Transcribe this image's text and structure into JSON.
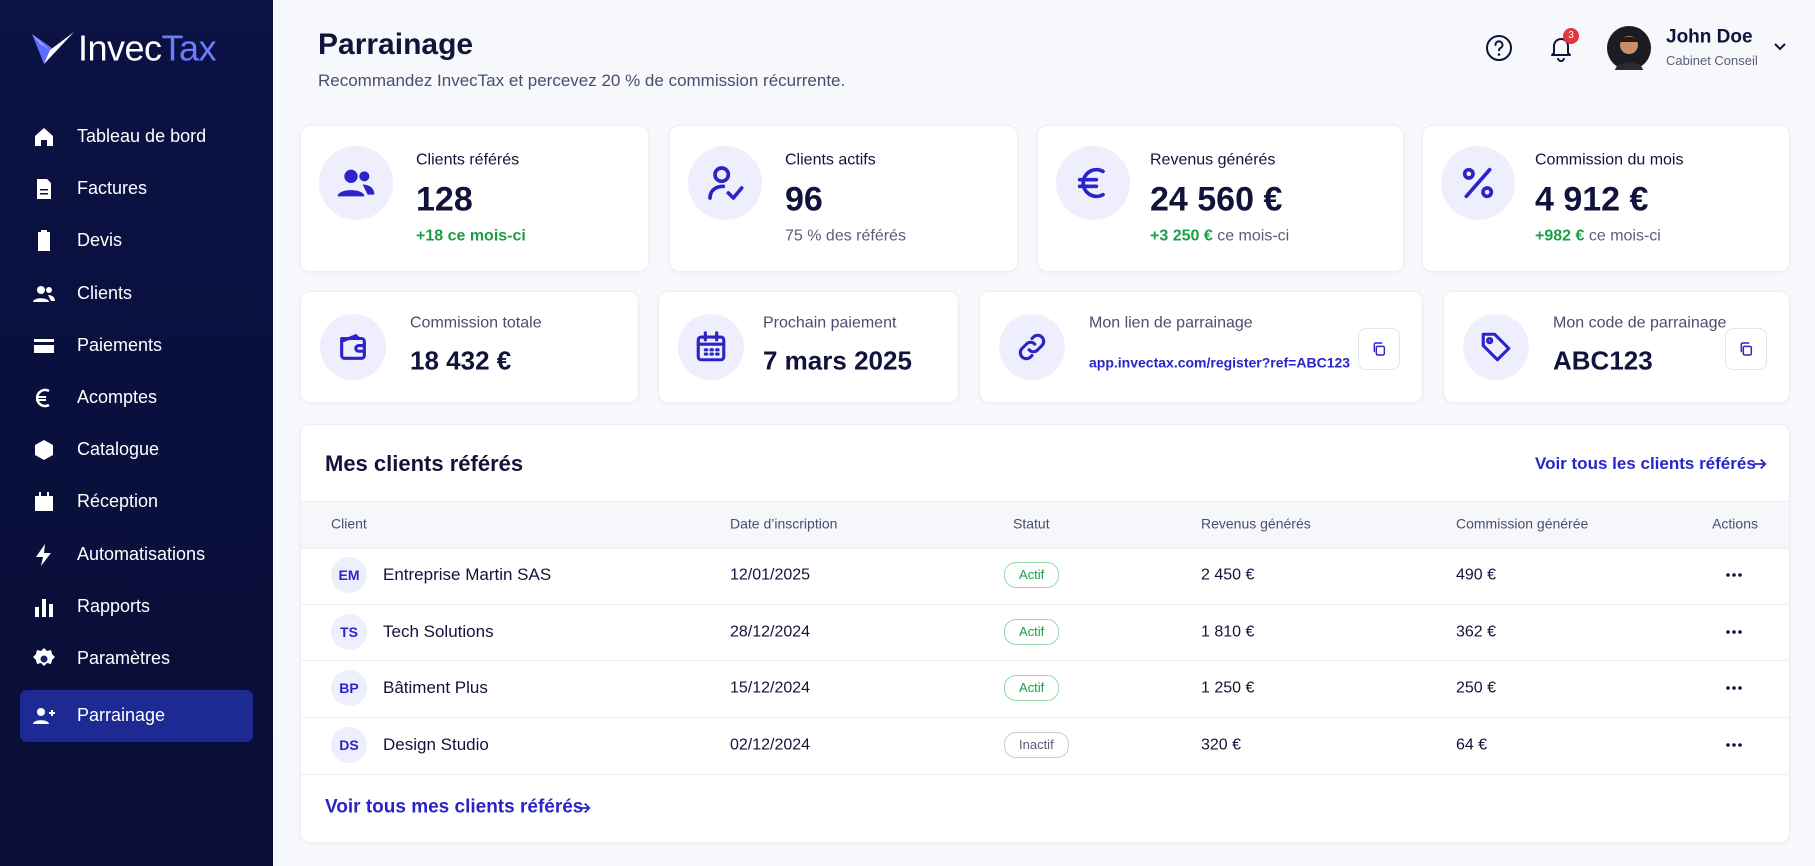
{
  "sidebar": {
    "logo": {
      "left": "Invec",
      "right": "Tax"
    },
    "nav": [
      {
        "label": "Tableau de bord"
      },
      {
        "label": "Factures"
      },
      {
        "label": "Devis"
      },
      {
        "label": "Clients"
      },
      {
        "label": "Paiements"
      },
      {
        "label": "Acomptes"
      },
      {
        "label": "Catalogue"
      },
      {
        "label": "Réception"
      },
      {
        "label": "Automatisations"
      },
      {
        "label": "Rapports"
      },
      {
        "label": "Paramètres"
      },
      {
        "label": "Parrainage",
        "active": true
      }
    ]
  },
  "header": {
    "title": "Parrainage",
    "subtitle": "Recommandez InvecTax et percevez 20 % de commission récurrente.",
    "notifications": 3,
    "user": {
      "name": "John Doe",
      "role": "Cabinet Conseil"
    }
  },
  "stats": [
    {
      "label": "Clients référés",
      "value": "128",
      "change": "+18 ce mois-ci"
    },
    {
      "label": "Clients actifs",
      "value": "96",
      "note": "75 % des référés"
    },
    {
      "label": "Revenus générés",
      "value": "24 560 €",
      "change": "+3 250 €",
      "note": "ce mois-ci"
    },
    {
      "label": "Commission du mois",
      "value": "4 912 €",
      "change": "+982 €",
      "note": "ce mois-ci"
    }
  ],
  "details": [
    {
      "label": "Commission totale",
      "value": "18 432 €"
    },
    {
      "label": "Prochain paiement",
      "value": "7 mars 2025"
    },
    {
      "label": "Mon lien de parrainage",
      "value": "app.invectax.com/register?ref=ABC123",
      "copy": true,
      "link": true
    },
    {
      "label": "Mon code de parrainage",
      "value": "ABC123",
      "copy": true
    }
  ],
  "table": {
    "title": "Mes clients référés",
    "link": "Voir tous les clients référés",
    "columns": [
      "Client",
      "Date d’inscription",
      "Statut",
      "Revenus générés",
      "Commission générée",
      "Actions"
    ],
    "rows": [
      {
        "initials": "EM",
        "client": "Entreprise Martin SAS",
        "date": "12/01/2025",
        "status": "Actif",
        "active": true,
        "revenue": "2 450 €",
        "commission": "490 €"
      },
      {
        "initials": "TS",
        "client": "Tech Solutions",
        "date": "28/12/2024",
        "status": "Actif",
        "active": true,
        "revenue": "1 810 €",
        "commission": "362 €"
      },
      {
        "initials": "BP",
        "client": "Bâtiment Plus",
        "date": "15/12/2024",
        "status": "Actif",
        "active": true,
        "revenue": "1 250 €",
        "commission": "250 €"
      },
      {
        "initials": "DS",
        "client": "Design Studio",
        "date": "02/12/2024",
        "status": "Inactif",
        "active": false,
        "revenue": "320 €",
        "commission": "64 €"
      }
    ],
    "footer_link": "Voir tous mes clients référés"
  }
}
